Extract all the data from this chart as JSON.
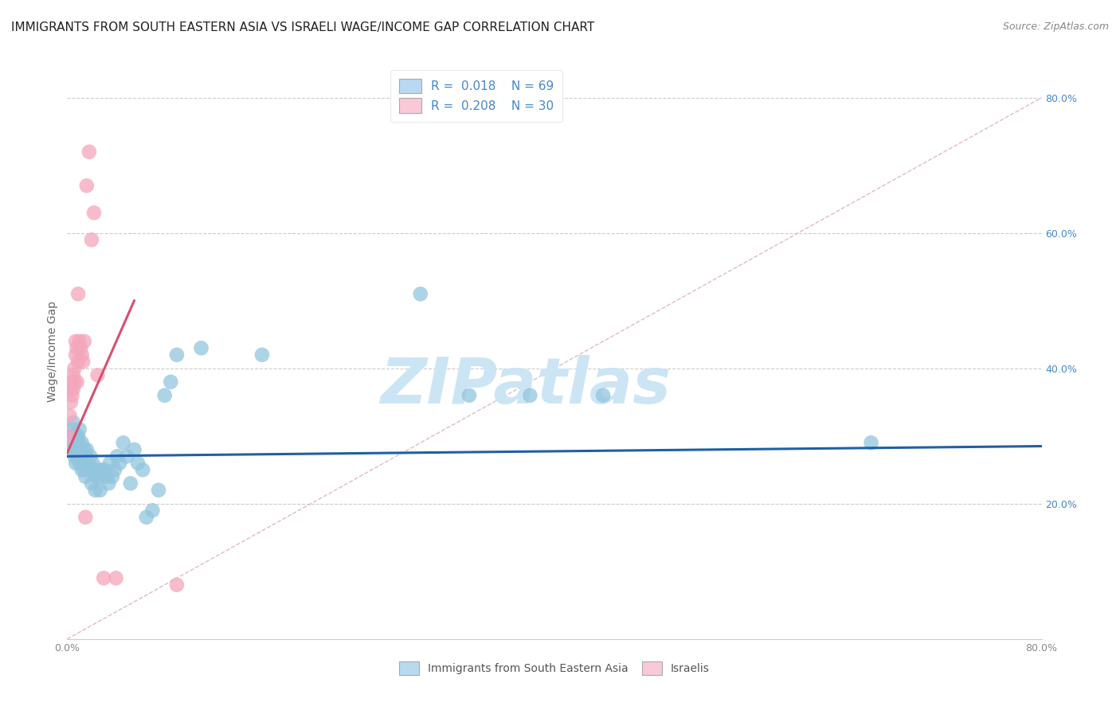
{
  "title": "IMMIGRANTS FROM SOUTH EASTERN ASIA VS ISRAELI WAGE/INCOME GAP CORRELATION CHART",
  "source": "Source: ZipAtlas.com",
  "ylabel": "Wage/Income Gap",
  "xlim": [
    0.0,
    0.8
  ],
  "ylim": [
    0.0,
    0.85
  ],
  "yticks": [
    0.2,
    0.4,
    0.6,
    0.8
  ],
  "xticks": [
    0.0,
    0.1,
    0.2,
    0.3,
    0.4,
    0.5,
    0.6,
    0.7,
    0.8
  ],
  "xtick_labels": [
    "0.0%",
    "",
    "",
    "",
    "",
    "",
    "",
    "",
    "80.0%"
  ],
  "ytick_labels": [
    "20.0%",
    "40.0%",
    "60.0%",
    "80.0%"
  ],
  "blue_color": "#92c5de",
  "pink_color": "#f4a6bc",
  "blue_line_color": "#1f5fa6",
  "pink_line_color": "#d94f6e",
  "legend_color_blue": "#b8d9f0",
  "legend_color_pink": "#f9c9d8",
  "watermark": "ZIPatlas",
  "watermark_color": "#cce5f5",
  "grid_color": "#cccccc",
  "background_color": "#ffffff",
  "title_fontsize": 11,
  "axis_label_fontsize": 10,
  "tick_fontsize": 9,
  "legend_fontsize": 11,
  "blue_x": [
    0.002,
    0.003,
    0.004,
    0.005,
    0.005,
    0.005,
    0.006,
    0.006,
    0.007,
    0.007,
    0.007,
    0.008,
    0.008,
    0.009,
    0.009,
    0.009,
    0.01,
    0.01,
    0.01,
    0.011,
    0.011,
    0.012,
    0.012,
    0.013,
    0.013,
    0.014,
    0.014,
    0.015,
    0.015,
    0.016,
    0.017,
    0.018,
    0.019,
    0.02,
    0.021,
    0.022,
    0.023,
    0.024,
    0.025,
    0.026,
    0.027,
    0.028,
    0.03,
    0.032,
    0.034,
    0.035,
    0.037,
    0.039,
    0.041,
    0.043,
    0.046,
    0.049,
    0.052,
    0.055,
    0.058,
    0.062,
    0.065,
    0.07,
    0.075,
    0.08,
    0.085,
    0.09,
    0.11,
    0.16,
    0.29,
    0.33,
    0.38,
    0.44,
    0.66
  ],
  "blue_y": [
    0.3,
    0.29,
    0.31,
    0.28,
    0.3,
    0.32,
    0.27,
    0.29,
    0.3,
    0.28,
    0.26,
    0.29,
    0.27,
    0.3,
    0.27,
    0.28,
    0.29,
    0.26,
    0.31,
    0.28,
    0.27,
    0.25,
    0.29,
    0.27,
    0.26,
    0.28,
    0.25,
    0.27,
    0.24,
    0.28,
    0.26,
    0.25,
    0.27,
    0.23,
    0.26,
    0.25,
    0.22,
    0.24,
    0.25,
    0.24,
    0.22,
    0.25,
    0.25,
    0.24,
    0.23,
    0.26,
    0.24,
    0.25,
    0.27,
    0.26,
    0.29,
    0.27,
    0.23,
    0.28,
    0.26,
    0.25,
    0.18,
    0.19,
    0.22,
    0.36,
    0.38,
    0.42,
    0.43,
    0.42,
    0.51,
    0.36,
    0.36,
    0.36,
    0.29
  ],
  "pink_x": [
    0.001,
    0.002,
    0.003,
    0.003,
    0.004,
    0.004,
    0.005,
    0.005,
    0.006,
    0.006,
    0.007,
    0.007,
    0.008,
    0.008,
    0.009,
    0.009,
    0.01,
    0.011,
    0.012,
    0.013,
    0.014,
    0.015,
    0.016,
    0.018,
    0.02,
    0.022,
    0.025,
    0.03,
    0.04,
    0.09
  ],
  "pink_y": [
    0.3,
    0.33,
    0.35,
    0.37,
    0.36,
    0.38,
    0.37,
    0.39,
    0.38,
    0.4,
    0.42,
    0.44,
    0.43,
    0.38,
    0.51,
    0.41,
    0.44,
    0.43,
    0.42,
    0.41,
    0.44,
    0.18,
    0.67,
    0.72,
    0.59,
    0.63,
    0.39,
    0.09,
    0.09,
    0.08
  ],
  "blue_trend_x": [
    0.0,
    0.8
  ],
  "blue_trend_y": [
    0.27,
    0.285
  ],
  "pink_trend_x": [
    0.0,
    0.055
  ],
  "pink_trend_y": [
    0.275,
    0.5
  ]
}
